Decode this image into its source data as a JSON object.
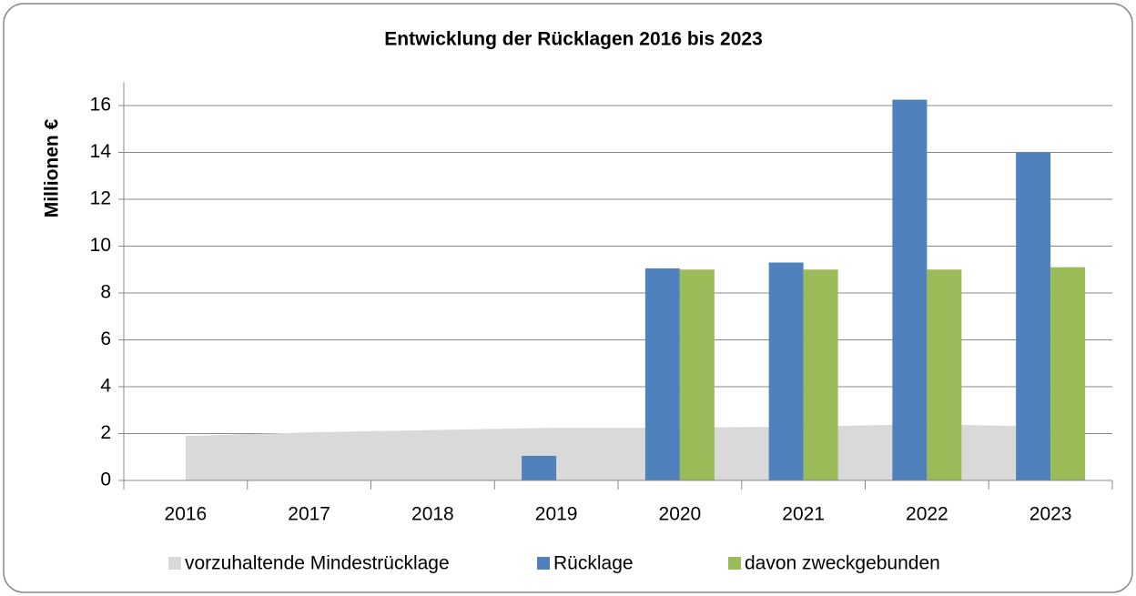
{
  "chart_data": {
    "type": "bar",
    "title": "Entwicklung der Rücklagen 2016 bis 2023",
    "y_label": "Millionen €",
    "categories": [
      "2016",
      "2017",
      "2018",
      "2019",
      "2020",
      "2021",
      "2022",
      "2023"
    ],
    "series": [
      {
        "name": "vorzuhaltende Mindestrücklage",
        "type": "area",
        "color": "#d9d9d9",
        "values": [
          1.9,
          2.05,
          2.15,
          2.25,
          2.25,
          2.3,
          2.4,
          2.3
        ]
      },
      {
        "name": "Rücklage",
        "type": "bar",
        "color": "#4f81bd",
        "values": [
          null,
          null,
          null,
          1.05,
          9.05,
          9.3,
          16.25,
          14.0
        ]
      },
      {
        "name": "davon zweckgebunden",
        "type": "bar",
        "color": "#9bbb59",
        "values": [
          null,
          null,
          null,
          null,
          9.0,
          9.0,
          9.0,
          9.1
        ]
      }
    ],
    "ylim": [
      0,
      17
    ],
    "yticks": [
      0,
      2,
      4,
      6,
      8,
      10,
      12,
      14,
      16
    ],
    "grid": true,
    "legend": "bottom"
  }
}
